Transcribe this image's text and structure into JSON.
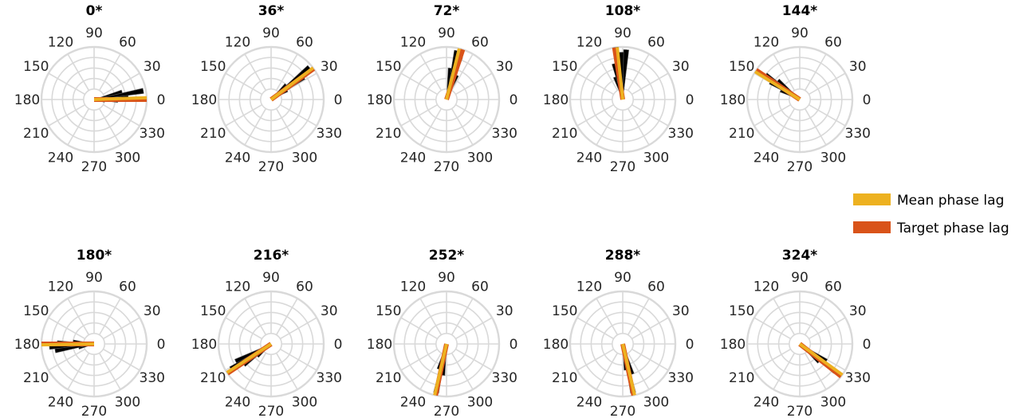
{
  "chart_data": {
    "type": "polar-histogram",
    "angular_tick_labels": [
      "0",
      "30",
      "60",
      "90",
      "120",
      "150",
      "180",
      "210",
      "240",
      "270",
      "300",
      "330"
    ],
    "legend_position": "right",
    "legend": [
      {
        "label": "Mean phase lag",
        "color": "#EDB120"
      },
      {
        "label": "Target phase lag",
        "color": "#D95319"
      }
    ],
    "colors": {
      "histogram": "#000000",
      "mean": "#EDB120",
      "target": "#D95319",
      "grid": "#d9d9d9"
    },
    "panels": [
      {
        "title": "0*",
        "target_deg": 0,
        "mean_deg": 2,
        "bins": [
          {
            "angle": 348,
            "r": 0.2
          },
          {
            "angle": 356,
            "r": 0.45
          },
          {
            "angle": 4,
            "r": 0.65
          },
          {
            "angle": 10,
            "r": 0.95
          },
          {
            "angle": 16,
            "r": 0.55
          }
        ]
      },
      {
        "title": "36*",
        "target_deg": 36,
        "mean_deg": 37,
        "bins": [
          {
            "angle": 28,
            "r": 0.35
          },
          {
            "angle": 34,
            "r": 0.75
          },
          {
            "angle": 40,
            "r": 0.95
          },
          {
            "angle": 46,
            "r": 0.4
          }
        ]
      },
      {
        "title": "72*",
        "target_deg": 72,
        "mean_deg": 76,
        "bins": [
          {
            "angle": 66,
            "r": 0.5
          },
          {
            "angle": 72,
            "r": 0.85
          },
          {
            "angle": 78,
            "r": 0.95
          },
          {
            "angle": 84,
            "r": 0.6
          }
        ]
      },
      {
        "title": "108*",
        "target_deg": 99,
        "mean_deg": 96,
        "bins": [
          {
            "angle": 86,
            "r": 0.95
          },
          {
            "angle": 92,
            "r": 0.9
          },
          {
            "angle": 98,
            "r": 1.0
          },
          {
            "angle": 104,
            "r": 0.7
          },
          {
            "angle": 110,
            "r": 0.45
          }
        ]
      },
      {
        "title": "144*",
        "target_deg": 146,
        "mean_deg": 148,
        "bins": [
          {
            "angle": 138,
            "r": 0.55
          },
          {
            "angle": 144,
            "r": 0.8
          },
          {
            "angle": 150,
            "r": 0.65
          },
          {
            "angle": 156,
            "r": 0.4
          }
        ]
      },
      {
        "title": "180*",
        "target_deg": 180,
        "mean_deg": 181,
        "bins": [
          {
            "angle": 172,
            "r": 0.4
          },
          {
            "angle": 178,
            "r": 0.7
          },
          {
            "angle": 184,
            "r": 0.85
          },
          {
            "angle": 190,
            "r": 0.75
          },
          {
            "angle": 196,
            "r": 0.3
          }
        ]
      },
      {
        "title": "216*",
        "target_deg": 214,
        "mean_deg": 213,
        "bins": [
          {
            "angle": 206,
            "r": 0.75
          },
          {
            "angle": 212,
            "r": 0.9
          },
          {
            "angle": 218,
            "r": 0.65
          },
          {
            "angle": 224,
            "r": 0.35
          }
        ]
      },
      {
        "title": "252*",
        "target_deg": 258,
        "mean_deg": 257,
        "bins": [
          {
            "angle": 252,
            "r": 0.5
          },
          {
            "angle": 258,
            "r": 0.95
          },
          {
            "angle": 264,
            "r": 0.6
          }
        ]
      },
      {
        "title": "288*",
        "target_deg": 282,
        "mean_deg": 283,
        "bins": [
          {
            "angle": 276,
            "r": 0.5
          },
          {
            "angle": 282,
            "r": 0.95
          },
          {
            "angle": 288,
            "r": 0.6
          }
        ]
      },
      {
        "title": "324*",
        "target_deg": 322,
        "mean_deg": 324,
        "bins": [
          {
            "angle": 316,
            "r": 0.5
          },
          {
            "angle": 322,
            "r": 0.85
          },
          {
            "angle": 328,
            "r": 0.6
          }
        ]
      }
    ]
  }
}
